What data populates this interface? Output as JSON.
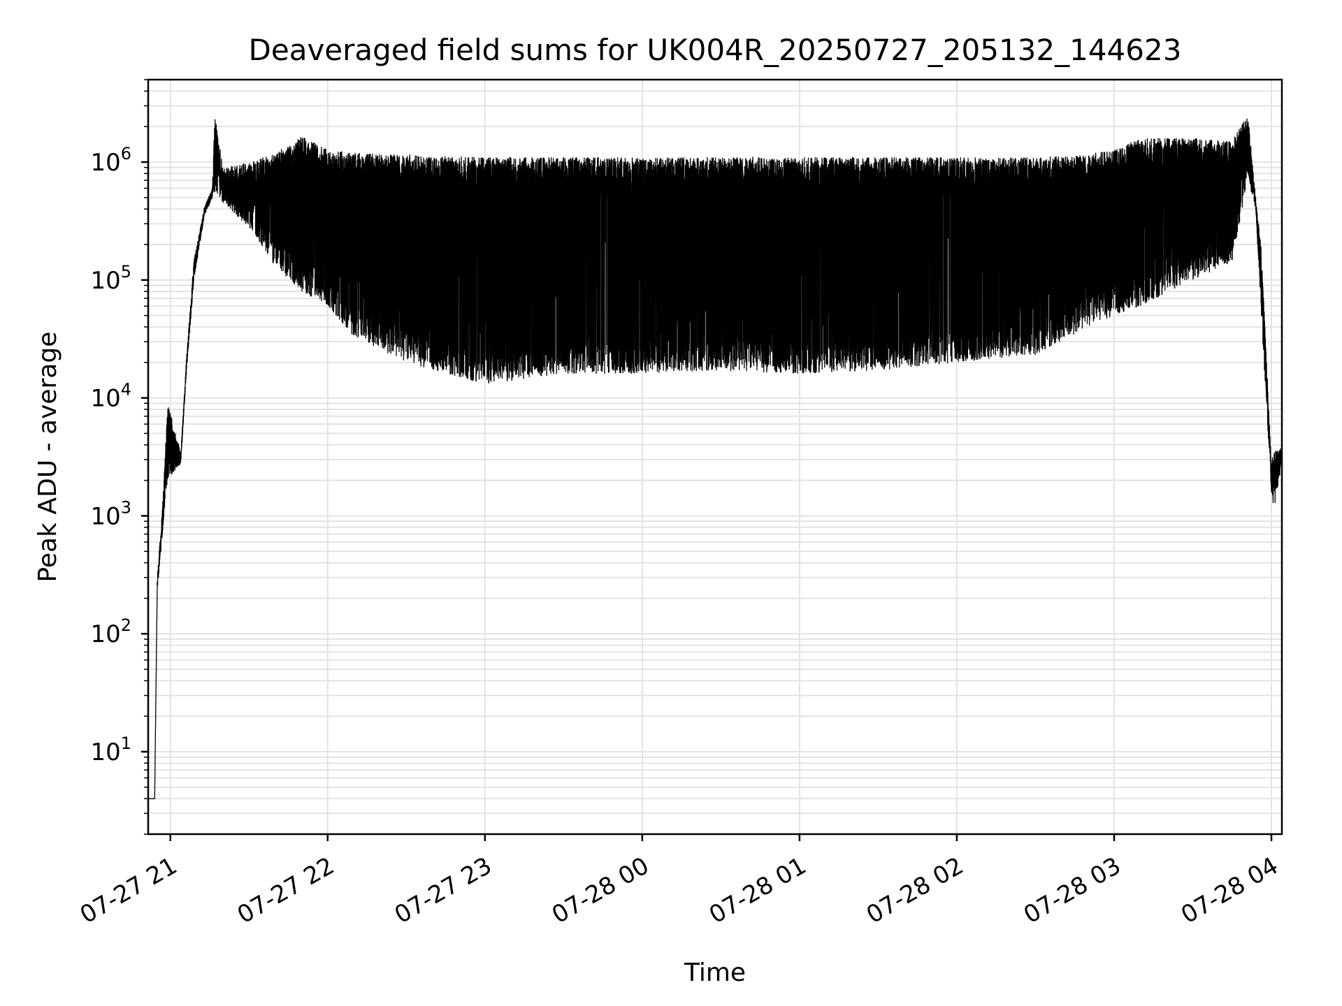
{
  "chart_data": {
    "type": "line",
    "title": "Deaveraged field sums for UK004R_20250727_205132_144623",
    "xlabel": "Time",
    "ylabel": "Peak ADU - average",
    "yscale": "log",
    "ylim": [
      2,
      5000000
    ],
    "xlim": [
      "2025-07-27 20:51:32",
      "2025-07-28 04:04:00"
    ],
    "grid": true,
    "x_ticks": [
      {
        "value": "2025-07-27 21:00",
        "label": "07-27 21"
      },
      {
        "value": "2025-07-27 22:00",
        "label": "07-27 22"
      },
      {
        "value": "2025-07-27 23:00",
        "label": "07-27 23"
      },
      {
        "value": "2025-07-28 00:00",
        "label": "07-28 00"
      },
      {
        "value": "2025-07-28 01:00",
        "label": "07-28 01"
      },
      {
        "value": "2025-07-28 02:00",
        "label": "07-28 02"
      },
      {
        "value": "2025-07-28 03:00",
        "label": "07-28 03"
      },
      {
        "value": "2025-07-28 04:00",
        "label": "07-28 04"
      }
    ],
    "y_ticks": [
      {
        "value": 10,
        "base": "10",
        "exp": "1"
      },
      {
        "value": 100,
        "base": "10",
        "exp": "2"
      },
      {
        "value": 1000,
        "base": "10",
        "exp": "3"
      },
      {
        "value": 10000,
        "base": "10",
        "exp": "4"
      },
      {
        "value": 100000,
        "base": "10",
        "exp": "5"
      },
      {
        "value": 1000000,
        "base": "10",
        "exp": "6"
      }
    ],
    "series": [
      {
        "color": "#000000",
        "envelope": [
          {
            "t": "2025-07-27 20:51:32",
            "upper": 4,
            "lower": 4
          },
          {
            "t": "2025-07-27 20:54:00",
            "upper": 4,
            "lower": 4
          },
          {
            "t": "2025-07-27 20:55:00",
            "upper": 300,
            "lower": 230
          },
          {
            "t": "2025-07-27 20:57:00",
            "upper": 1200,
            "lower": 700
          },
          {
            "t": "2025-07-27 20:59:00",
            "upper": 9000,
            "lower": 2000
          },
          {
            "t": "2025-07-27 21:04:00",
            "upper": 3500,
            "lower": 2800
          },
          {
            "t": "2025-07-27 21:06:00",
            "upper": 20000,
            "lower": 15000
          },
          {
            "t": "2025-07-27 21:09:00",
            "upper": 150000,
            "lower": 100000
          },
          {
            "t": "2025-07-27 21:13:00",
            "upper": 420000,
            "lower": 350000
          },
          {
            "t": "2025-07-27 21:16:00",
            "upper": 600000,
            "lower": 500000
          },
          {
            "t": "2025-07-27 21:17:00",
            "upper": 2600000,
            "lower": 550000
          },
          {
            "t": "2025-07-27 21:20:00",
            "upper": 900000,
            "lower": 450000
          },
          {
            "t": "2025-07-27 21:30:00",
            "upper": 1000000,
            "lower": 280000
          },
          {
            "t": "2025-07-27 21:40:00",
            "upper": 1200000,
            "lower": 130000
          },
          {
            "t": "2025-07-27 21:50:00",
            "upper": 1650000,
            "lower": 80000
          },
          {
            "t": "2025-07-27 22:00:00",
            "upper": 1300000,
            "lower": 60000
          },
          {
            "t": "2025-07-27 22:10:00",
            "upper": 1200000,
            "lower": 33000
          },
          {
            "t": "2025-07-27 22:30:00",
            "upper": 1150000,
            "lower": 20000
          },
          {
            "t": "2025-07-27 23:00:00",
            "upper": 1100000,
            "lower": 13000
          },
          {
            "t": "2025-07-27 23:30:00",
            "upper": 1100000,
            "lower": 16000
          },
          {
            "t": "2025-07-28 00:00:00",
            "upper": 1100000,
            "lower": 16000
          },
          {
            "t": "2025-07-28 00:30:00",
            "upper": 1100000,
            "lower": 17000
          },
          {
            "t": "2025-07-28 01:00:00",
            "upper": 1100000,
            "lower": 16000
          },
          {
            "t": "2025-07-28 01:30:00",
            "upper": 1100000,
            "lower": 17000
          },
          {
            "t": "2025-07-28 02:00:00",
            "upper": 1100000,
            "lower": 20000
          },
          {
            "t": "2025-07-28 02:30:00",
            "upper": 1100000,
            "lower": 23000
          },
          {
            "t": "2025-07-28 02:50:00",
            "upper": 1150000,
            "lower": 40000
          },
          {
            "t": "2025-07-28 03:00:00",
            "upper": 1300000,
            "lower": 50000
          },
          {
            "t": "2025-07-28 03:10:00",
            "upper": 1600000,
            "lower": 60000
          },
          {
            "t": "2025-07-28 03:30:00",
            "upper": 1600000,
            "lower": 100000
          },
          {
            "t": "2025-07-28 03:45:00",
            "upper": 1500000,
            "lower": 140000
          },
          {
            "t": "2025-07-28 03:51:00",
            "upper": 2600000,
            "lower": 700000
          },
          {
            "t": "2025-07-28 03:54:00",
            "upper": 500000,
            "lower": 400000
          },
          {
            "t": "2025-07-28 03:56:00",
            "upper": 200000,
            "lower": 60000
          },
          {
            "t": "2025-07-28 03:58:00",
            "upper": 25000,
            "lower": 9000
          },
          {
            "t": "2025-07-28 04:00:00",
            "upper": 3000,
            "lower": 1600
          },
          {
            "t": "2025-07-28 04:01:00",
            "upper": 3500,
            "lower": 1100
          },
          {
            "t": "2025-07-28 04:04:00",
            "upper": 3800,
            "lower": 2800
          }
        ]
      }
    ]
  }
}
